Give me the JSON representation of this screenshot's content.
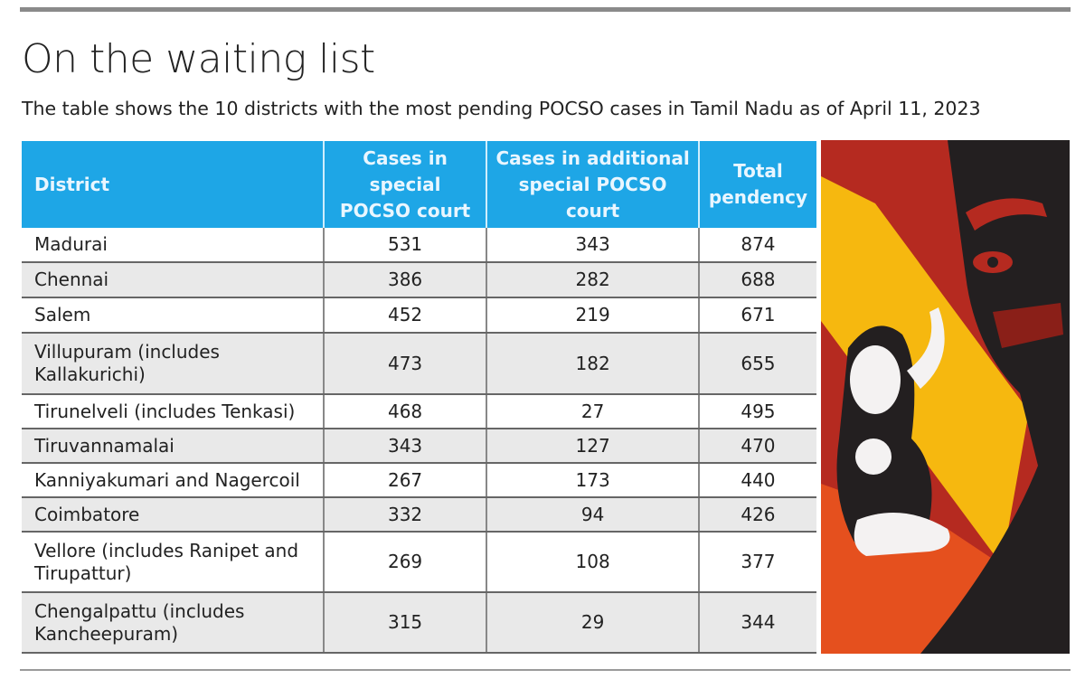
{
  "title": "On the waiting list",
  "subtitle": "The table shows the 10 districts with the most pending POCSO cases in Tamil Nadu as of April 11, 2023",
  "colors": {
    "header": "#1ea6e6",
    "illustration_red": "#b52a20",
    "illustration_yellow": "#f6b80f",
    "illustration_black": "#231f20"
  },
  "chart_data": {
    "type": "table",
    "columns": [
      "District",
      "Cases in special POCSO court",
      "Cases in additional special POCSO court",
      "Total pendency"
    ],
    "rows": [
      [
        "Madurai",
        "531",
        "343",
        "874"
      ],
      [
        "Chennai",
        "386",
        "282",
        "688"
      ],
      [
        "Salem",
        "452",
        "219",
        "671"
      ],
      [
        "Villupuram (includes Kallakurichi)",
        "473",
        "182",
        "655"
      ],
      [
        "Tirunelveli (includes Tenkasi)",
        "468",
        "27",
        "495"
      ],
      [
        "Tiruvannamalai",
        "343",
        "127",
        "470"
      ],
      [
        "Kanniyakumari and Nagercoil",
        "267",
        "173",
        "440"
      ],
      [
        "Coimbatore",
        "332",
        "94",
        "426"
      ],
      [
        "Vellore (includes Ranipet and Tirupattur)",
        "269",
        "108",
        "377"
      ],
      [
        "Chengalpattu (includes Kancheepuram)",
        "315",
        "29",
        "344"
      ]
    ]
  }
}
